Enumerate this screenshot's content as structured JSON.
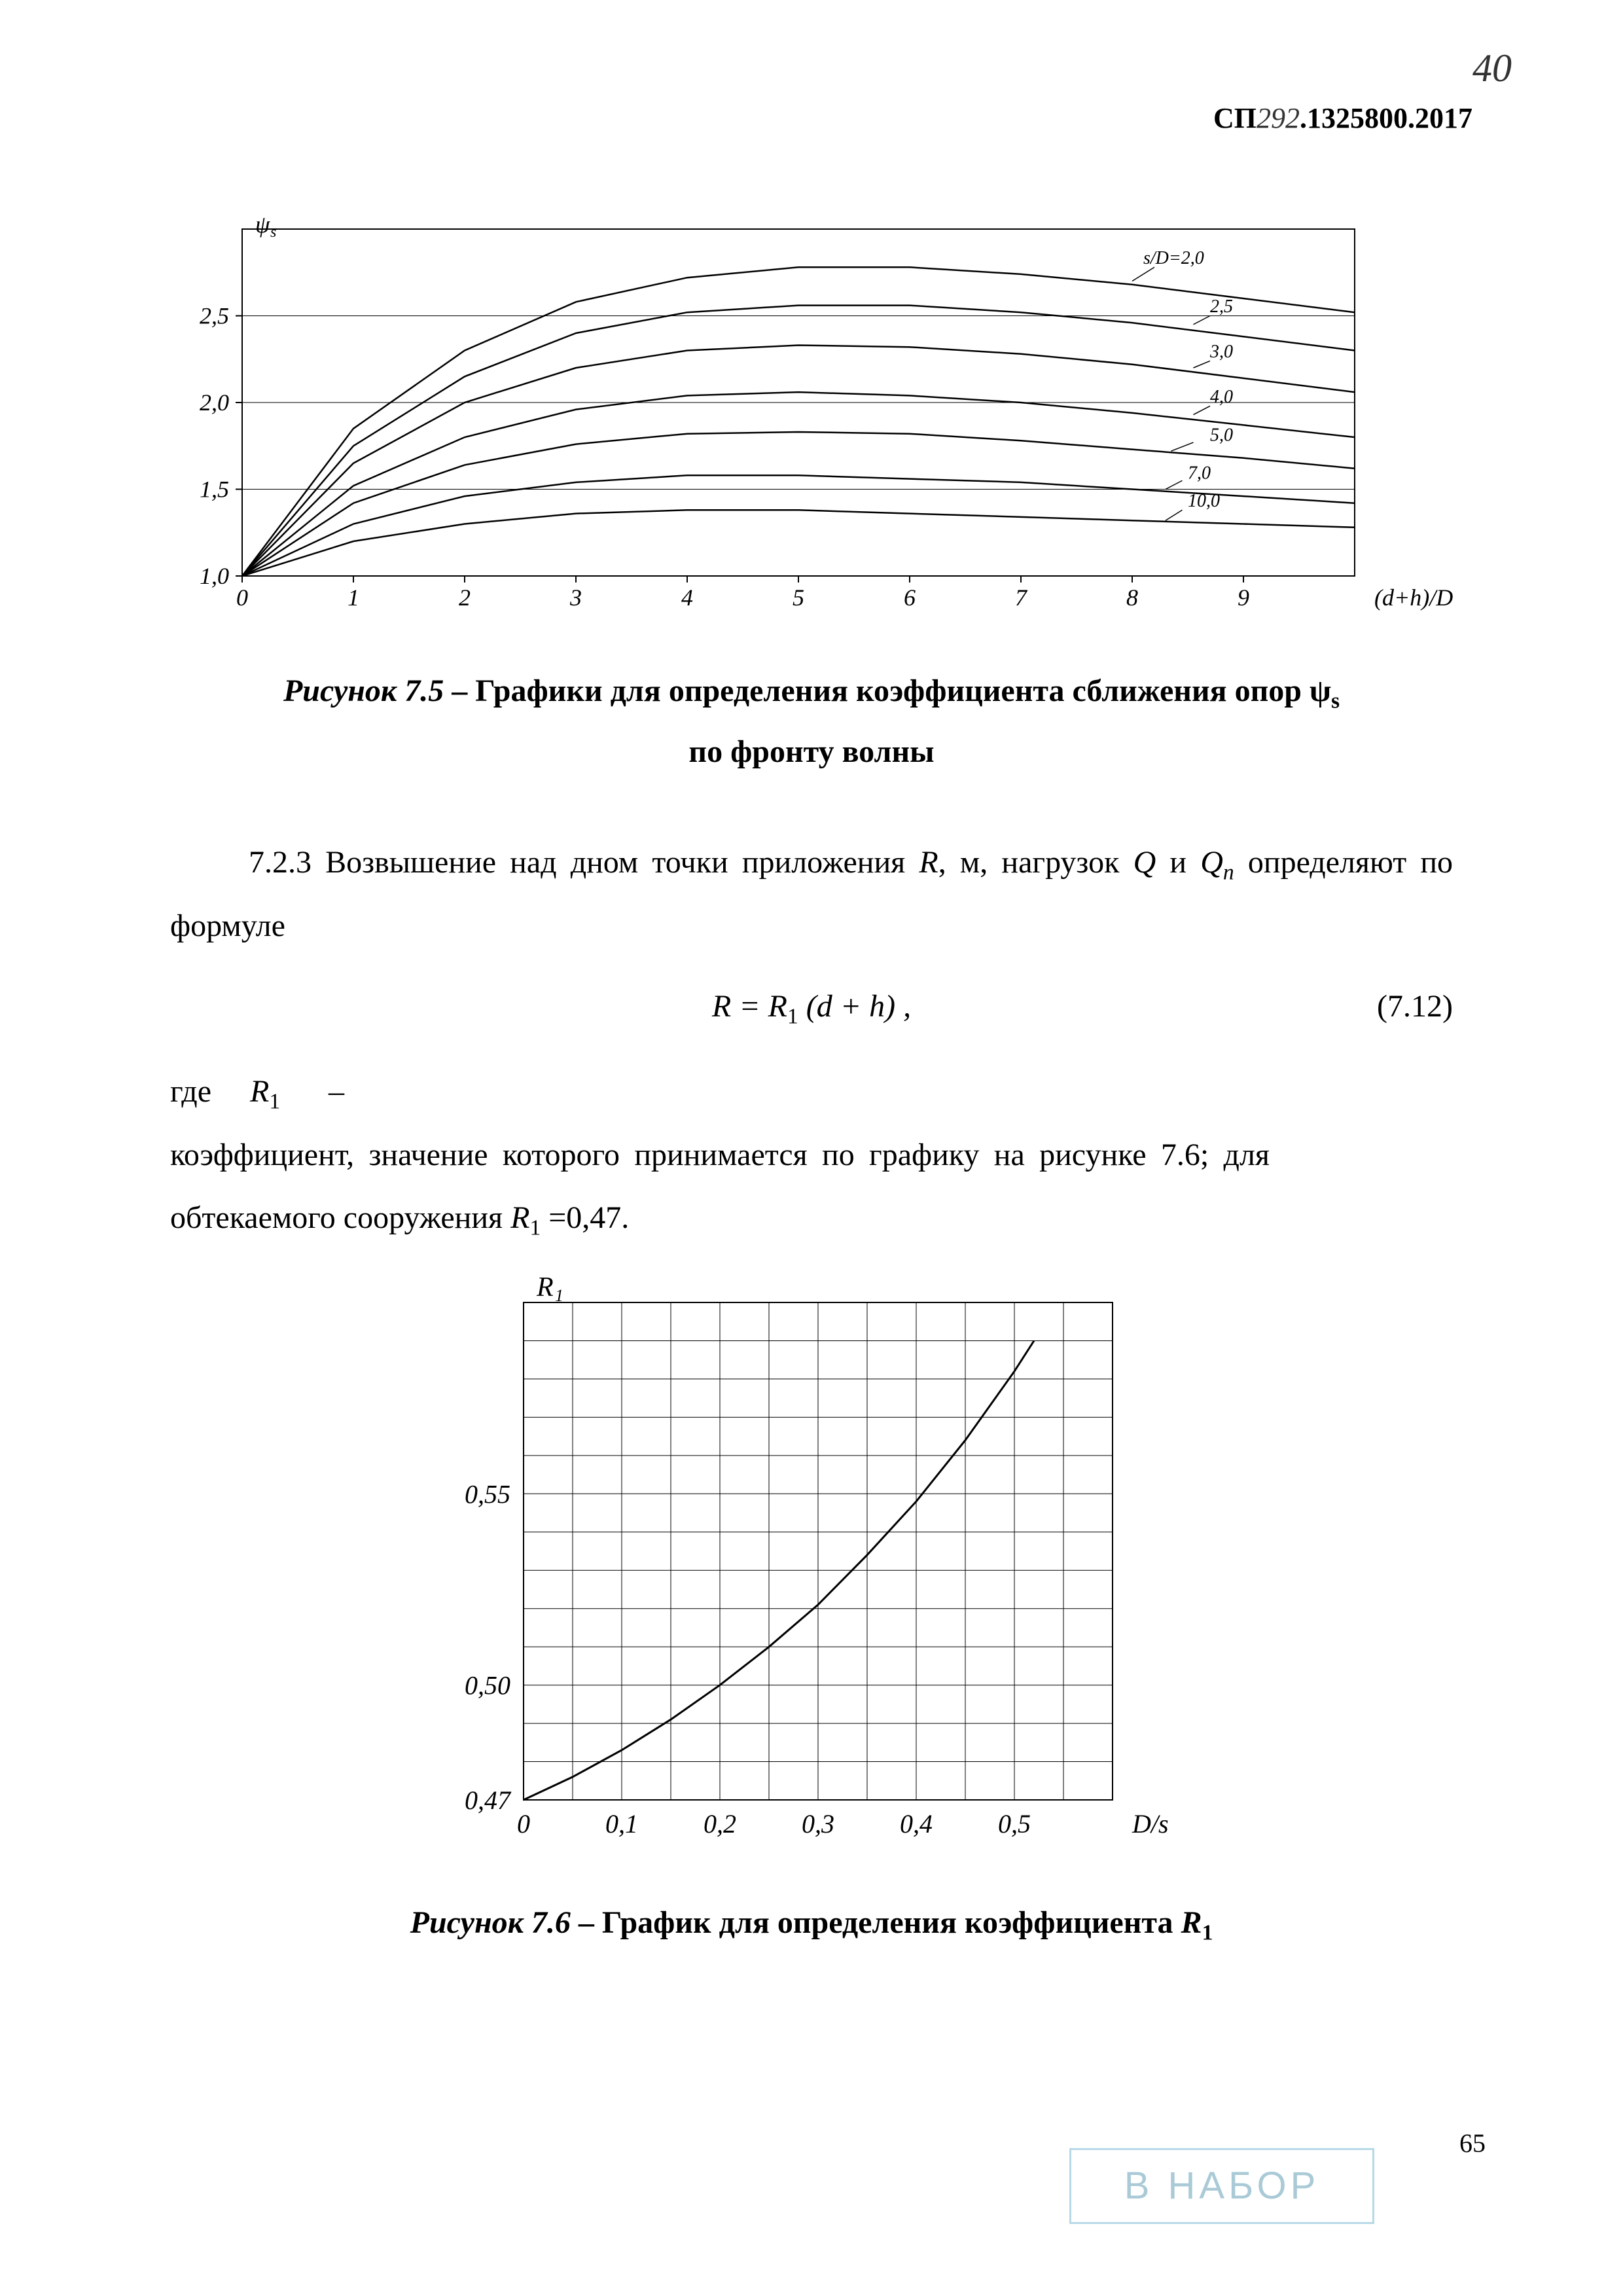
{
  "header": {
    "handwritten_page": "40",
    "code_prefix": "СП",
    "code_hand": "292",
    "code_suffix": ".1325800.2017"
  },
  "chart1": {
    "type": "line",
    "y_axis_label": "ψₛ",
    "x_axis_label": "(d+h)/D",
    "x_ticks": [
      "0",
      "1",
      "2",
      "3",
      "4",
      "5",
      "6",
      "7",
      "8",
      "9"
    ],
    "y_ticks": [
      "1,0",
      "1,5",
      "2,0",
      "2,5"
    ],
    "xlim": [
      0,
      10
    ],
    "ylim": [
      1.0,
      3.0
    ],
    "line_color": "#000000",
    "grid_color": "#000000",
    "background_color": "#ffffff",
    "series_label_header": "s/D=2,0",
    "series": [
      {
        "label": "2,0",
        "points": [
          [
            0,
            1.0
          ],
          [
            1,
            1.85
          ],
          [
            2,
            2.3
          ],
          [
            3,
            2.58
          ],
          [
            4,
            2.72
          ],
          [
            5,
            2.78
          ],
          [
            6,
            2.78
          ],
          [
            7,
            2.74
          ],
          [
            8,
            2.68
          ],
          [
            9,
            2.6
          ],
          [
            10,
            2.52
          ]
        ]
      },
      {
        "label": "2,5",
        "points": [
          [
            0,
            1.0
          ],
          [
            1,
            1.75
          ],
          [
            2,
            2.15
          ],
          [
            3,
            2.4
          ],
          [
            4,
            2.52
          ],
          [
            5,
            2.56
          ],
          [
            6,
            2.56
          ],
          [
            7,
            2.52
          ],
          [
            8,
            2.46
          ],
          [
            9,
            2.38
          ],
          [
            10,
            2.3
          ]
        ]
      },
      {
        "label": "3,0",
        "points": [
          [
            0,
            1.0
          ],
          [
            1,
            1.65
          ],
          [
            2,
            2.0
          ],
          [
            3,
            2.2
          ],
          [
            4,
            2.3
          ],
          [
            5,
            2.33
          ],
          [
            6,
            2.32
          ],
          [
            7,
            2.28
          ],
          [
            8,
            2.22
          ],
          [
            9,
            2.14
          ],
          [
            10,
            2.06
          ]
        ]
      },
      {
        "label": "4,0",
        "points": [
          [
            0,
            1.0
          ],
          [
            1,
            1.52
          ],
          [
            2,
            1.8
          ],
          [
            3,
            1.96
          ],
          [
            4,
            2.04
          ],
          [
            5,
            2.06
          ],
          [
            6,
            2.04
          ],
          [
            7,
            2.0
          ],
          [
            8,
            1.94
          ],
          [
            9,
            1.87
          ],
          [
            10,
            1.8
          ]
        ]
      },
      {
        "label": "5,0",
        "points": [
          [
            0,
            1.0
          ],
          [
            1,
            1.42
          ],
          [
            2,
            1.64
          ],
          [
            3,
            1.76
          ],
          [
            4,
            1.82
          ],
          [
            5,
            1.83
          ],
          [
            6,
            1.82
          ],
          [
            7,
            1.78
          ],
          [
            8,
            1.73
          ],
          [
            9,
            1.68
          ],
          [
            10,
            1.62
          ]
        ]
      },
      {
        "label": "7,0",
        "points": [
          [
            0,
            1.0
          ],
          [
            1,
            1.3
          ],
          [
            2,
            1.46
          ],
          [
            3,
            1.54
          ],
          [
            4,
            1.58
          ],
          [
            5,
            1.58
          ],
          [
            6,
            1.56
          ],
          [
            7,
            1.54
          ],
          [
            8,
            1.5
          ],
          [
            9,
            1.46
          ],
          [
            10,
            1.42
          ]
        ]
      },
      {
        "label": "10,0",
        "points": [
          [
            0,
            1.0
          ],
          [
            1,
            1.2
          ],
          [
            2,
            1.3
          ],
          [
            3,
            1.36
          ],
          [
            4,
            1.38
          ],
          [
            5,
            1.38
          ],
          [
            6,
            1.36
          ],
          [
            7,
            1.34
          ],
          [
            8,
            1.32
          ],
          [
            9,
            1.3
          ],
          [
            10,
            1.28
          ]
        ]
      }
    ]
  },
  "fig1": {
    "label": "Рисунок 7.5",
    "dash": " – ",
    "text_a": "Графики для определения коэффициента сближения опор ψ",
    "sub_a": "s",
    "text_b": "по фронту волны"
  },
  "para1": {
    "num": "7.2.3 ",
    "text_a": "Возвышение над дном точки приложения ",
    "R": "R",
    "text_b": ", м, нагрузок ",
    "Q": "Q",
    "and": " и ",
    "Qn": "Q",
    "Qn_sub": "n",
    "text_c": " определяют по формуле"
  },
  "formula": {
    "lhs": "R",
    "rhs_a": "R",
    "rhs_sub": "1",
    "rhs_b": "(d + h) ,",
    "number": "(7.12)"
  },
  "where": {
    "label": "где",
    "symbol": "R",
    "symbol_sub": "1",
    "dash": "–",
    "text_a": "коэффициент, значение которого принимается по графику на рисунке 7.6; для обтекаемого сооружения ",
    "text_b": " =0,47."
  },
  "chart2": {
    "type": "line",
    "y_axis_label": "R₁",
    "x_axis_label": "D/s",
    "x_ticks": [
      "0",
      "0,1",
      "0,2",
      "0,3",
      "0,4",
      "0,5"
    ],
    "y_ticks": [
      "0,47",
      "0,50",
      "0,55"
    ],
    "xlim": [
      0,
      0.6
    ],
    "ylim": [
      0.47,
      0.6
    ],
    "line_color": "#000000",
    "grid_color": "#000000",
    "background_color": "#ffffff",
    "series": [
      {
        "points": [
          [
            0,
            0.47
          ],
          [
            0.05,
            0.476
          ],
          [
            0.1,
            0.483
          ],
          [
            0.15,
            0.491
          ],
          [
            0.2,
            0.5
          ],
          [
            0.25,
            0.51
          ],
          [
            0.3,
            0.521
          ],
          [
            0.35,
            0.534
          ],
          [
            0.4,
            0.548
          ],
          [
            0.45,
            0.564
          ],
          [
            0.5,
            0.582
          ],
          [
            0.52,
            0.59
          ]
        ]
      }
    ]
  },
  "fig2": {
    "label": "Рисунок 7.6",
    "dash": " – ",
    "text": "График для определения коэффициента ",
    "R": "R",
    "sub": "1"
  },
  "footer": {
    "page_num": "65",
    "stamp": "В НАБОР"
  }
}
